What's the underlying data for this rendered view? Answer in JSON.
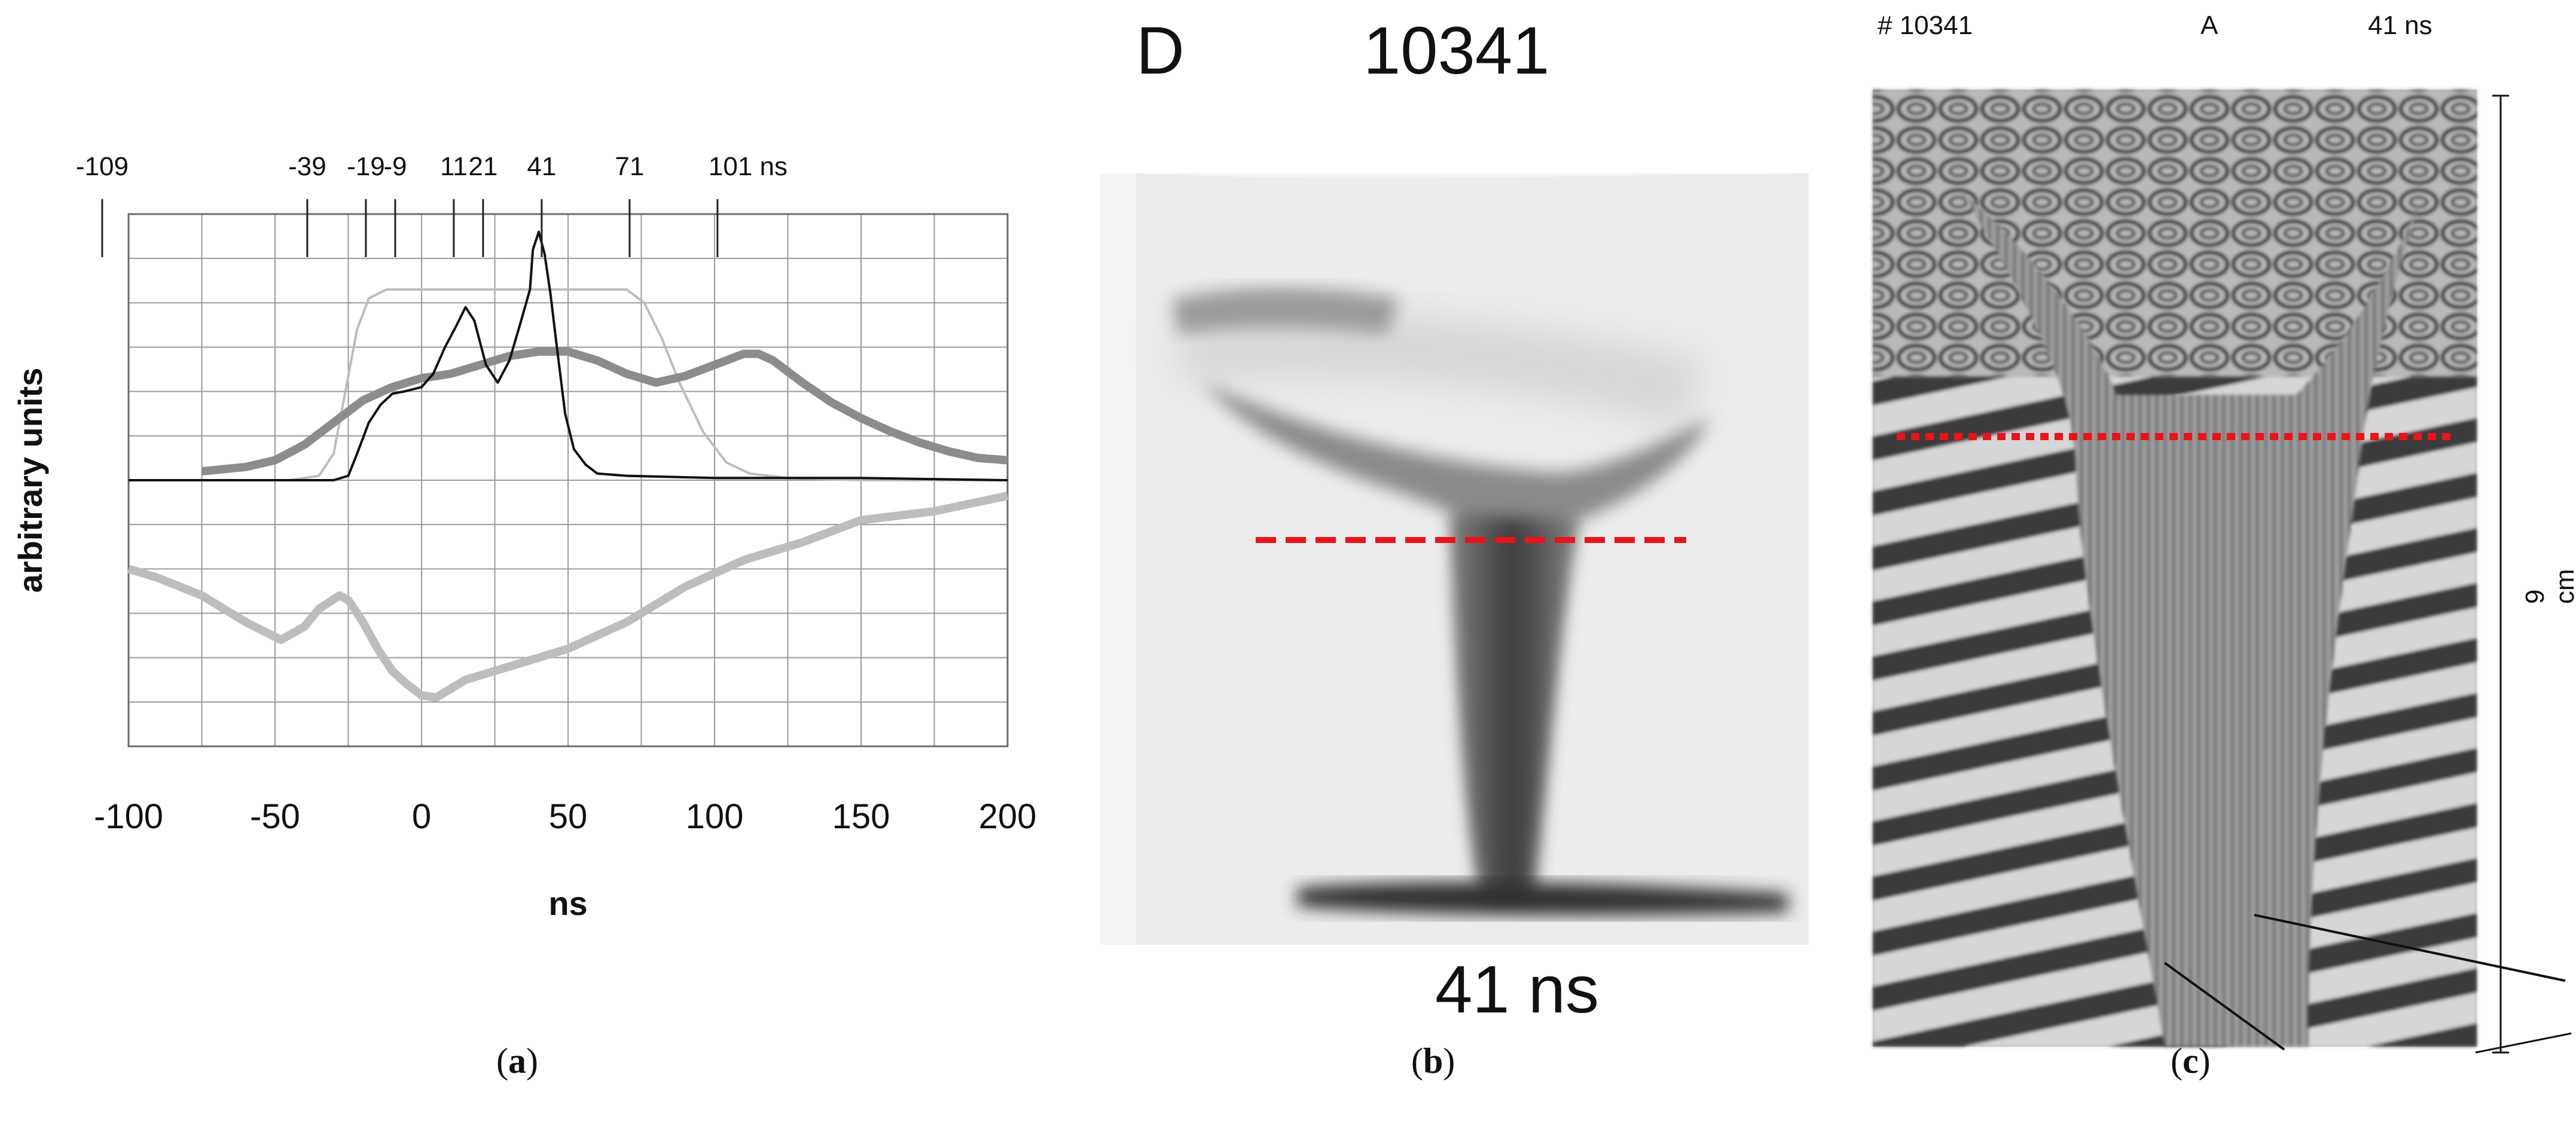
{
  "panel_a": {
    "label": "a",
    "chart_data": {
      "type": "line",
      "title": "",
      "xlabel": "ns",
      "ylabel": "arbitrary units",
      "xlim": [
        -100,
        200
      ],
      "ylim": [
        -6,
        6
      ],
      "xticks": [
        -100,
        -50,
        0,
        50,
        100,
        150,
        200
      ],
      "xtick_labels": [
        "-100",
        "-50",
        "0",
        "50",
        "100",
        "150",
        "200"
      ],
      "grid": true,
      "frame_markers": {
        "labels": [
          "-109",
          "-39",
          "-19",
          "-9",
          "11",
          "21",
          "41",
          "71",
          "101 ns"
        ],
        "times": [
          -109,
          -39,
          -19,
          -9,
          11,
          21,
          41,
          71,
          101
        ]
      },
      "series": [
        {
          "name": "light gray (upper)",
          "color": "#bdbdbd",
          "x": [
            -100,
            -45,
            -35,
            -30,
            -26,
            -22,
            -18,
            -12,
            0,
            20,
            50,
            70,
            76,
            82,
            88,
            96,
            104,
            112,
            125,
            150,
            200
          ],
          "y": [
            0,
            0,
            0.1,
            0.6,
            2.0,
            3.4,
            4.1,
            4.3,
            4.3,
            4.3,
            4.3,
            4.3,
            4.0,
            3.2,
            2.2,
            1.1,
            0.4,
            0.15,
            0.05,
            0,
            0
          ]
        },
        {
          "name": "thick gray (upper)",
          "color": "#8c8c8c",
          "x": [
            -75,
            -60,
            -50,
            -40,
            -30,
            -20,
            -10,
            0,
            10,
            20,
            30,
            40,
            50,
            60,
            70,
            80,
            90,
            100,
            110,
            115,
            120,
            130,
            140,
            150,
            160,
            170,
            180,
            190,
            200
          ],
          "y": [
            0.2,
            0.3,
            0.45,
            0.8,
            1.3,
            1.8,
            2.1,
            2.3,
            2.4,
            2.6,
            2.8,
            2.9,
            2.9,
            2.7,
            2.4,
            2.2,
            2.35,
            2.6,
            2.85,
            2.85,
            2.7,
            2.2,
            1.75,
            1.4,
            1.1,
            0.85,
            0.65,
            0.5,
            0.45
          ]
        },
        {
          "name": "black",
          "color": "#111111",
          "x": [
            -100,
            -40,
            -30,
            -25,
            -22,
            -18,
            -14,
            -10,
            -6,
            0,
            4,
            8,
            12,
            15,
            18,
            22,
            26,
            30,
            34,
            37,
            38,
            40,
            42,
            44,
            46,
            49,
            52,
            56,
            60,
            70,
            100,
            150,
            200
          ],
          "y": [
            0,
            0,
            0,
            0.1,
            0.6,
            1.3,
            1.7,
            1.95,
            2.0,
            2.1,
            2.4,
            3.0,
            3.5,
            3.9,
            3.6,
            2.6,
            2.2,
            2.7,
            3.6,
            4.3,
            5.2,
            5.6,
            5.1,
            4.2,
            3.1,
            1.5,
            0.7,
            0.35,
            0.15,
            0.1,
            0.05,
            0.05,
            0
          ]
        },
        {
          "name": "light gray (lower)",
          "color": "#bdbdbd",
          "x": [
            -100,
            -90,
            -75,
            -60,
            -48,
            -40,
            -35,
            -28,
            -25,
            -20,
            -15,
            -10,
            -5,
            0,
            5,
            15,
            30,
            50,
            70,
            90,
            110,
            130,
            150,
            175,
            200
          ],
          "y": [
            -2.0,
            -2.2,
            -2.6,
            -3.2,
            -3.6,
            -3.3,
            -2.9,
            -2.6,
            -2.7,
            -3.2,
            -3.8,
            -4.3,
            -4.6,
            -4.85,
            -4.9,
            -4.5,
            -4.2,
            -3.8,
            -3.2,
            -2.4,
            -1.8,
            -1.4,
            -0.9,
            -0.7,
            -0.35
          ]
        }
      ]
    }
  },
  "panel_b": {
    "label": "b",
    "header_letter": "D",
    "shot_number": "10341",
    "time_caption": "41 ns"
  },
  "panel_c": {
    "label": "c",
    "shot": "# 10341",
    "frame": "A",
    "time": "41 ns",
    "scale": "9 cm"
  }
}
